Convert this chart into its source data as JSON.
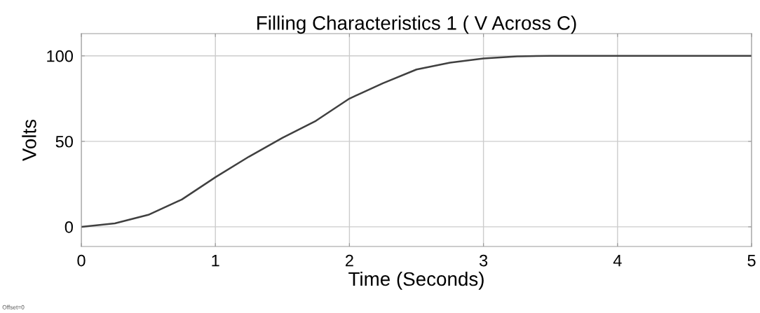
{
  "chart_data": {
    "type": "line",
    "title": "Filling Characteristics 1 ( V Across C)",
    "xlabel": "Time (Seconds)",
    "ylabel": "Volts",
    "annotations": [
      "Offset=0"
    ],
    "x": [
      0,
      0.25,
      0.5,
      0.75,
      1,
      1.25,
      1.5,
      1.75,
      2,
      2.25,
      2.5,
      2.75,
      3,
      3.25,
      3.5,
      4,
      4.5,
      5
    ],
    "series": [
      {
        "color": "#404040",
        "values": [
          0,
          2,
          7,
          16,
          29,
          41,
          52,
          62,
          75,
          84,
          92,
          96,
          98.5,
          99.7,
          100,
          100,
          100,
          100
        ]
      }
    ],
    "xlim": [
      0,
      5
    ],
    "ylim": [
      -11.5,
      113
    ],
    "xticks": [
      0,
      1,
      2,
      3,
      4,
      5
    ],
    "yticks": [
      0,
      50,
      100
    ],
    "grid": true,
    "legend": false,
    "marker": "none",
    "line_style": "solid"
  }
}
